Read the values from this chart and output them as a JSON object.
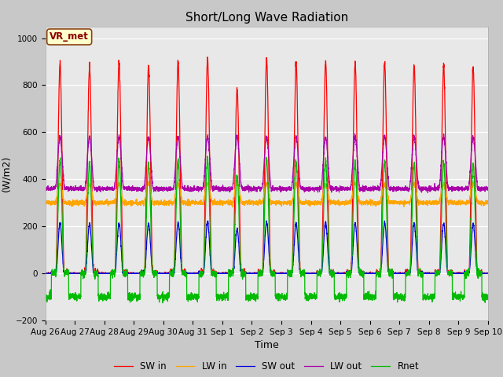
{
  "title": "Short/Long Wave Radiation",
  "xlabel": "Time",
  "ylabel": "(W/m2)",
  "ylim": [
    -200,
    1050
  ],
  "annotation": "VR_met",
  "legend": [
    "SW in",
    "LW in",
    "SW out",
    "LW out",
    "Rnet"
  ],
  "colors": {
    "SW_in": "#ff0000",
    "LW_in": "#ffa500",
    "SW_out": "#0000dd",
    "LW_out": "#aa00aa",
    "Rnet": "#00bb00"
  },
  "fig_facecolor": "#c8c8c8",
  "axes_facecolor": "#e8e8e8",
  "n_days": 15,
  "dt_hours": 0.1,
  "SW_in_peak": 920,
  "LW_in_base": 300,
  "LW_in_daytime_rise": 80,
  "SW_out_peak": 220,
  "LW_out_base": 360,
  "LW_out_peak_rise": 220,
  "Rnet_night": -100,
  "Rnet_peak": 490,
  "tick_labels": [
    "Aug 26",
    "Aug 27",
    "Aug 28",
    "Aug 29",
    "Aug 30",
    "Aug 31",
    "Sep 1",
    "Sep 2",
    "Sep 3",
    "Sep 4",
    "Sep 5",
    "Sep 6",
    "Sep 7",
    "Sep 8",
    "Sep 9",
    "Sep 10"
  ],
  "title_fontsize": 11,
  "label_fontsize": 9,
  "tick_fontsize": 7.5,
  "legend_fontsize": 8.5,
  "linewidth": 0.9
}
